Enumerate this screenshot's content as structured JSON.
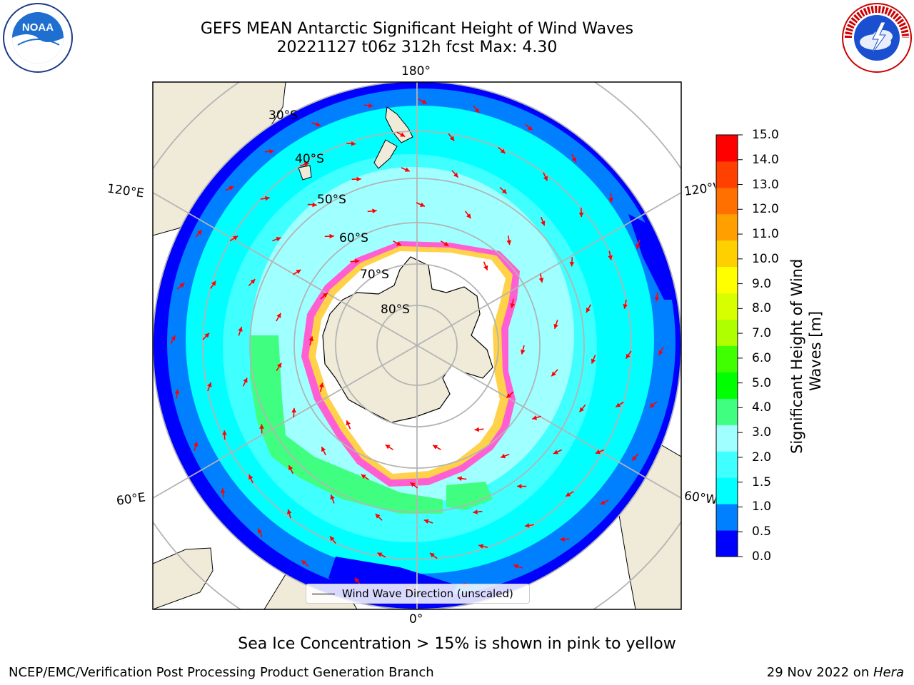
{
  "header": {
    "title_line1": "GEFS MEAN Antarctic Significant Height of Wind Waves",
    "title_line2": "20221127 t06z 312h fcst   Max: 4.30"
  },
  "logos": {
    "left": "NOAA",
    "right": "NATIONAL WEATHER SERVICE"
  },
  "map": {
    "projection": "south-polar-stereographic",
    "longitude_labels": {
      "top": "180°",
      "bottom": "0°",
      "upper_left": "120°E",
      "lower_left": "60°E",
      "upper_right": "120°W",
      "lower_right": "60°W"
    },
    "latitude_labels": [
      "30°S",
      "40°S",
      "50°S",
      "60°S",
      "70°S",
      "80°S"
    ],
    "legend_label": "Wind Wave Direction (unscaled)",
    "colors": {
      "land": "#efebd8",
      "sea_ice": "#ffffff",
      "ice_edge_pink": "#ff5fd2",
      "ice_edge_yellow": "#ffd24a",
      "arrow": "#ff0000",
      "grid": "#b4b4b4"
    }
  },
  "colorbar": {
    "label_line1": "Significant Height of Wind",
    "label_line2": "Waves [m]",
    "ticks": [
      "15.0",
      "14.0",
      "13.0",
      "12.0",
      "11.0",
      "10.0",
      "9.0",
      "8.0",
      "7.0",
      "6.0",
      "5.0",
      "4.0",
      "3.0",
      "2.0",
      "1.5",
      "1.0",
      "0.5",
      "0.0"
    ],
    "colors_bottom_to_top": [
      "#0000ff",
      "#0080ff",
      "#00ffff",
      "#40ffff",
      "#a0ffff",
      "#40ff80",
      "#00ff00",
      "#40ff00",
      "#b0ff00",
      "#d8ff00",
      "#ffff00",
      "#ffd000",
      "#ffa000",
      "#ff7000",
      "#ff4000",
      "#ff0000"
    ]
  },
  "subtitle": "Sea Ice Concentration > 15% is shown in pink to yellow",
  "footer": {
    "left": "NCEP/EMC/Verification Post Processing Product Generation Branch",
    "right_prefix": "29 Nov 2022 on ",
    "right_host": "Hera"
  }
}
